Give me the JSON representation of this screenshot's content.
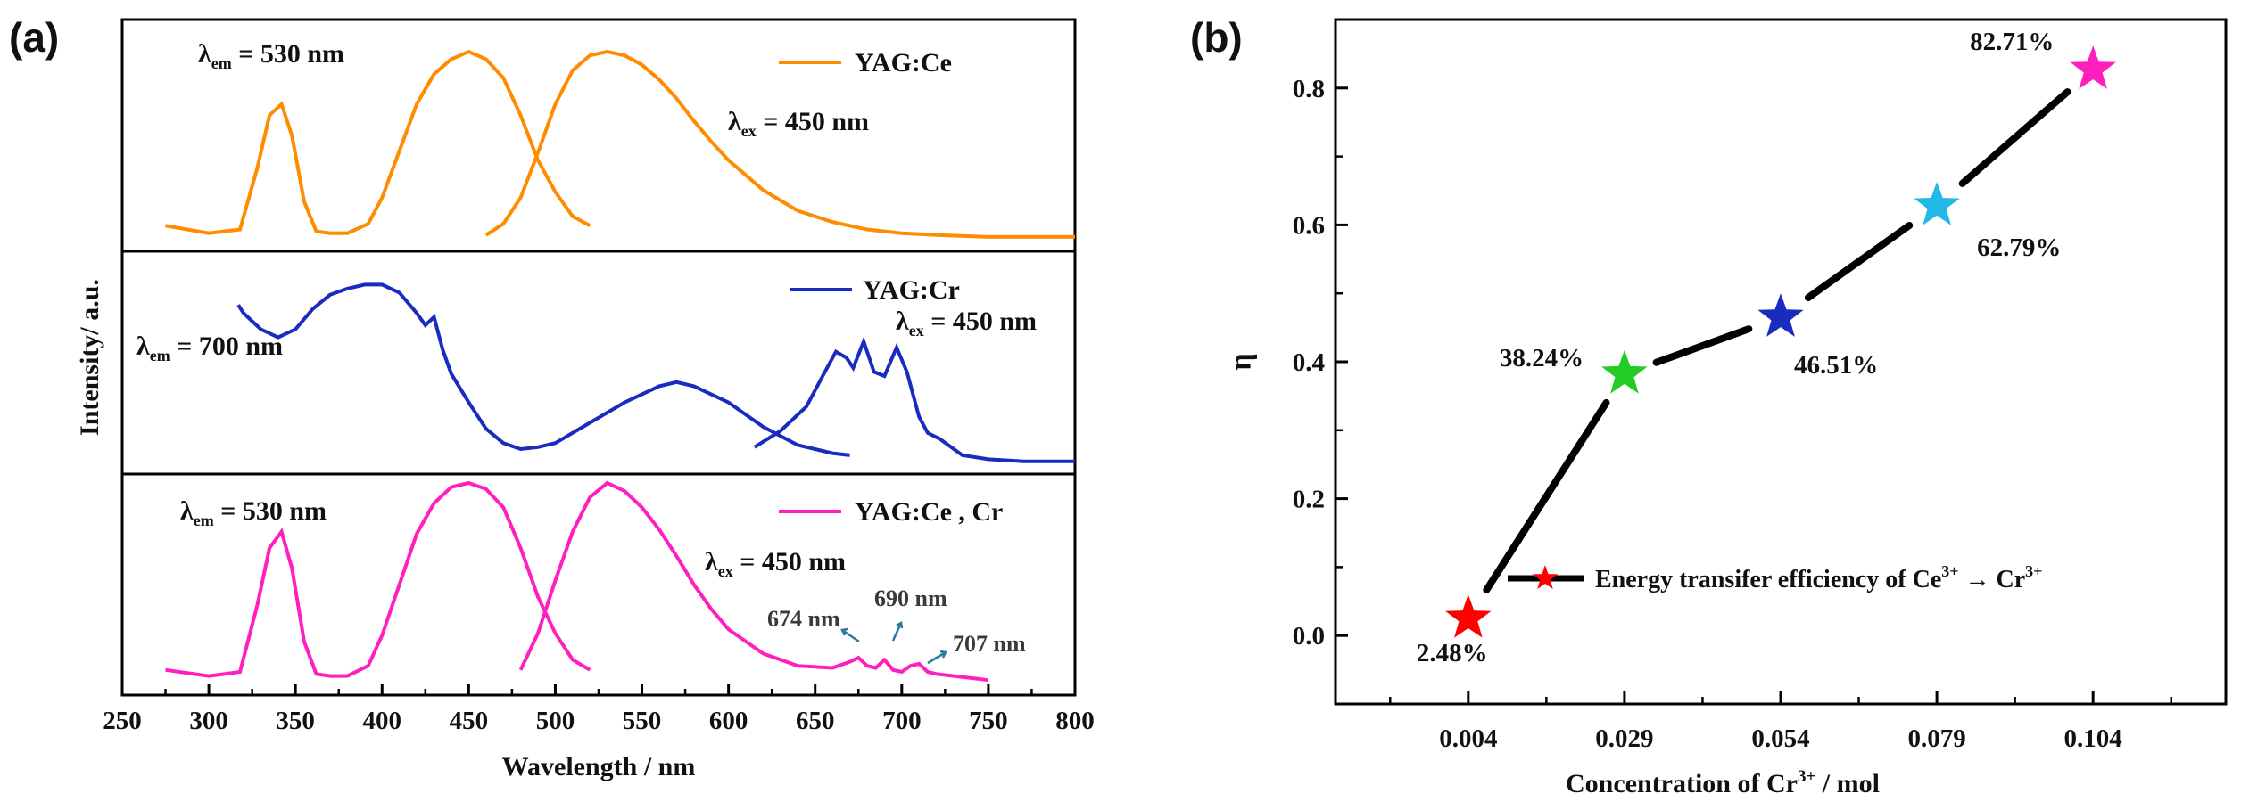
{
  "panel_a": {
    "panel_label": "(a)",
    "chart_data": {
      "type": "line",
      "xlabel": "Wavelength / nm",
      "ylabel": "Intensity/ a.u.",
      "xlim": [
        250,
        800
      ],
      "xticks": [
        "250",
        "300",
        "350",
        "400",
        "450",
        "500",
        "550",
        "600",
        "650",
        "700",
        "750",
        "800"
      ],
      "subplots": [
        {
          "name": "YAG:Ce",
          "color": "#ff8c00",
          "labels": {
            "em_prefix": "λ",
            "em_sub": "em",
            "em_value": " = 530 nm",
            "ex_prefix": "λ",
            "ex_sub": "ex",
            "ex_value": " = 450 nm"
          },
          "series": [
            {
              "name": "excitation",
              "x": [
                275,
                300,
                318,
                328,
                335,
                342,
                348,
                355,
                362,
                370,
                380,
                392,
                400,
                410,
                420,
                430,
                440,
                450,
                460,
                470,
                480,
                490,
                500,
                510,
                520
              ],
              "y": [
                0.07,
                0.03,
                0.05,
                0.38,
                0.66,
                0.72,
                0.55,
                0.2,
                0.04,
                0.03,
                0.03,
                0.08,
                0.22,
                0.47,
                0.72,
                0.88,
                0.96,
                1.0,
                0.96,
                0.86,
                0.66,
                0.42,
                0.25,
                0.12,
                0.07
              ]
            },
            {
              "name": "emission",
              "x": [
                460,
                470,
                480,
                490,
                500,
                510,
                520,
                530,
                540,
                550,
                560,
                570,
                580,
                590,
                600,
                620,
                640,
                660,
                680,
                700,
                720,
                750,
                800
              ],
              "y": [
                0.02,
                0.08,
                0.22,
                0.46,
                0.72,
                0.9,
                0.98,
                1.0,
                0.98,
                0.93,
                0.85,
                0.75,
                0.63,
                0.52,
                0.42,
                0.26,
                0.15,
                0.09,
                0.05,
                0.03,
                0.02,
                0.01,
                0.01
              ]
            }
          ]
        },
        {
          "name": "YAG:Cr",
          "color": "#1a2bbf",
          "labels": {
            "em_prefix": "λ",
            "em_sub": "em",
            "em_value": " = 700 nm",
            "ex_prefix": "λ",
            "ex_sub": "ex",
            "ex_value": " = 450 nm"
          },
          "series": [
            {
              "name": "excitation",
              "x": [
                317,
                320,
                330,
                340,
                350,
                360,
                370,
                380,
                390,
                400,
                410,
                420,
                425,
                430,
                435,
                440,
                450,
                460,
                470,
                480,
                490,
                500,
                520,
                540,
                560,
                570,
                580,
                600,
                620,
                640,
                660,
                670
              ],
              "y": [
                0.78,
                0.74,
                0.66,
                0.62,
                0.66,
                0.76,
                0.83,
                0.86,
                0.88,
                0.88,
                0.84,
                0.74,
                0.68,
                0.72,
                0.56,
                0.44,
                0.3,
                0.17,
                0.1,
                0.07,
                0.08,
                0.1,
                0.2,
                0.3,
                0.38,
                0.4,
                0.38,
                0.3,
                0.18,
                0.09,
                0.05,
                0.04
              ]
            },
            {
              "name": "emission",
              "x": [
                615,
                630,
                645,
                655,
                662,
                668,
                672,
                678,
                684,
                690,
                697,
                703,
                710,
                715,
                722,
                735,
                750,
                770,
                800
              ],
              "y": [
                0.08,
                0.16,
                0.28,
                0.44,
                0.55,
                0.52,
                0.47,
                0.6,
                0.45,
                0.43,
                0.57,
                0.45,
                0.23,
                0.15,
                0.12,
                0.04,
                0.02,
                0.01,
                0.01
              ]
            }
          ]
        },
        {
          "name": "YAG:Ce , Cr",
          "color": "#ff1fbf",
          "labels": {
            "em_prefix": "λ",
            "em_sub": "em",
            "em_value": " = 530 nm",
            "ex_prefix": "λ",
            "ex_sub": "ex",
            "ex_value": " = 450 nm"
          },
          "series": [
            {
              "name": "excitation",
              "x": [
                275,
                300,
                318,
                328,
                335,
                342,
                348,
                355,
                362,
                370,
                380,
                392,
                400,
                410,
                420,
                430,
                440,
                450,
                460,
                470,
                480,
                490,
                500,
                510,
                520
              ],
              "y": [
                0.08,
                0.05,
                0.07,
                0.4,
                0.68,
                0.76,
                0.58,
                0.22,
                0.06,
                0.05,
                0.05,
                0.1,
                0.25,
                0.5,
                0.75,
                0.9,
                0.98,
                1.0,
                0.97,
                0.88,
                0.68,
                0.44,
                0.26,
                0.13,
                0.08
              ]
            },
            {
              "name": "emission",
              "x": [
                480,
                490,
                500,
                510,
                520,
                530,
                540,
                550,
                560,
                570,
                580,
                590,
                600,
                620,
                640,
                660,
                670,
                675,
                680,
                685,
                690,
                695,
                700,
                705,
                710,
                715,
                720,
                730,
                740,
                750
              ],
              "y": [
                0.08,
                0.26,
                0.52,
                0.76,
                0.93,
                1.0,
                0.96,
                0.88,
                0.77,
                0.64,
                0.5,
                0.38,
                0.28,
                0.16,
                0.1,
                0.09,
                0.12,
                0.14,
                0.1,
                0.09,
                0.13,
                0.08,
                0.07,
                0.1,
                0.11,
                0.07,
                0.06,
                0.05,
                0.04,
                0.03
              ]
            }
          ],
          "annotations": [
            "674 nm",
            "690 nm",
            "707 nm"
          ]
        }
      ]
    }
  },
  "panel_b": {
    "panel_label": "(b)",
    "chart_data": {
      "type": "line",
      "xlabel_prefix": "Concentration of Cr",
      "xlabel_sup": "3+",
      "xlabel_suffix": " / mol",
      "ylabel": "η",
      "xlim": [
        -0.85,
        4.85
      ],
      "ylim": [
        -0.1,
        0.9
      ],
      "categories": [
        "0.004",
        "0.029",
        "0.054",
        "0.079",
        "0.104"
      ],
      "yticks": [
        "0.0",
        "0.2",
        "0.4",
        "0.6",
        "0.8"
      ],
      "values": [
        0.025,
        0.382,
        0.465,
        0.628,
        0.827
      ],
      "point_labels": [
        "2.48%",
        "38.24%",
        "46.51%",
        "62.79%",
        "82.71%"
      ],
      "point_colors": [
        "#ff0000",
        "#22cc22",
        "#1a2bbf",
        "#22b8e8",
        "#ff1fbf"
      ],
      "line_color": "#000000",
      "legend": {
        "marker_color": "#ff0000",
        "text_prefix": "Energy transifer efficiency of Ce",
        "sup1": "3+",
        "arrow": " → Cr",
        "sup2": "3+",
        "position": "center-right"
      }
    }
  }
}
